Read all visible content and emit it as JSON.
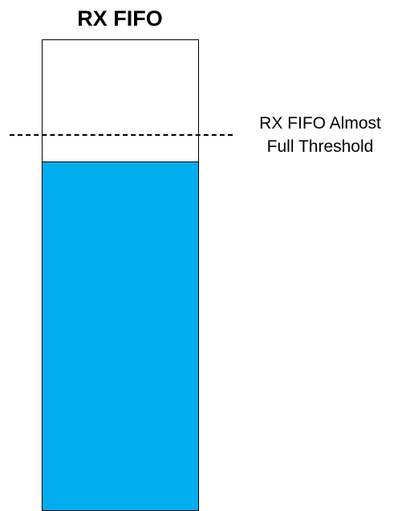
{
  "fifo": {
    "title": "RX FIFO",
    "fill_level": 0.74,
    "fill_color": "#00AEEF",
    "empty_color": "#FFFFFF",
    "border_color": "#000000"
  },
  "threshold": {
    "label_line1": "RX FIFO Almost",
    "label_line2": "Full Threshold",
    "level": 0.8,
    "line_style": "dashed",
    "line_color": "#000000"
  }
}
